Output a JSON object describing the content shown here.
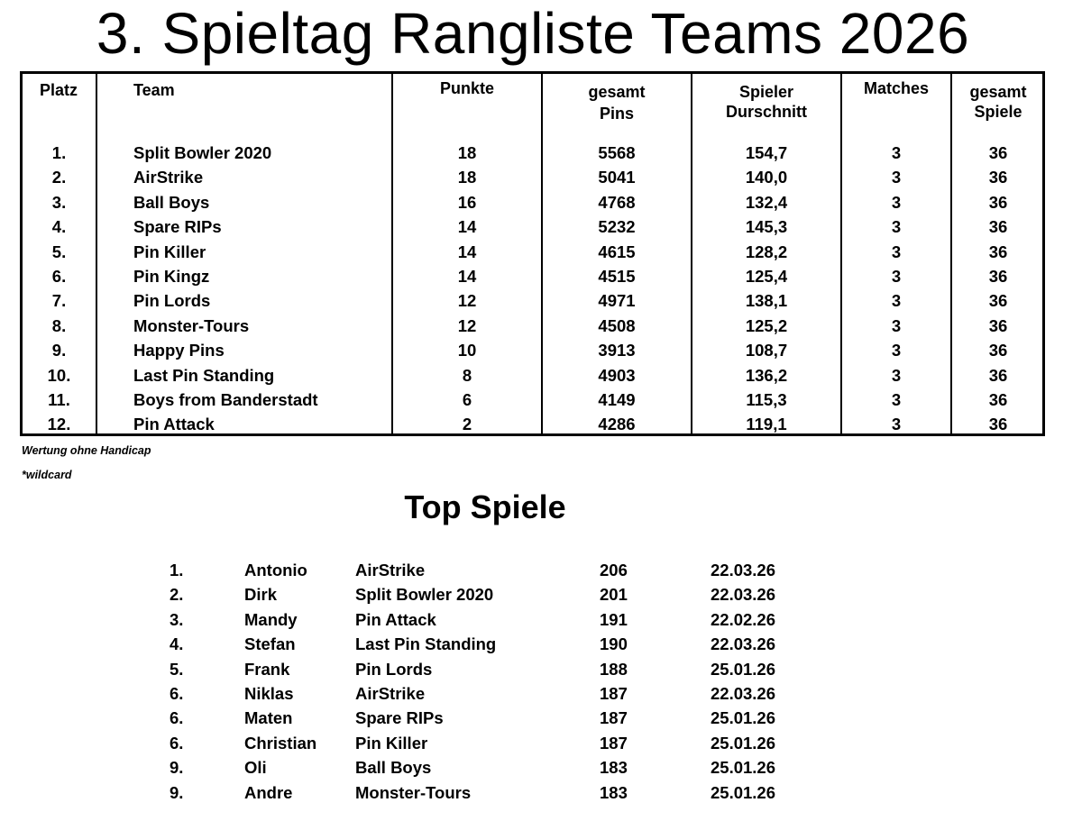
{
  "title": "3. Spieltag Rangliste Teams 2026",
  "ranking": {
    "headers": {
      "platz": "Platz",
      "team": "Team",
      "punkte": "Punkte",
      "pins_1": "gesamt",
      "pins_2": "Pins",
      "avg_1": "Spieler",
      "avg_2": "Durschnitt",
      "matches": "Matches",
      "games_1": "gesamt",
      "games_2": "Spiele"
    },
    "rows": [
      {
        "platz": "1.",
        "team": "Split Bowler 2020",
        "punkte": "18",
        "pins": "5568",
        "avg": "154,7",
        "matches": "3",
        "games": "36"
      },
      {
        "platz": "2.",
        "team": "AirStrike",
        "punkte": "18",
        "pins": "5041",
        "avg": "140,0",
        "matches": "3",
        "games": "36"
      },
      {
        "platz": "3.",
        "team": "Ball Boys",
        "punkte": "16",
        "pins": "4768",
        "avg": "132,4",
        "matches": "3",
        "games": "36"
      },
      {
        "platz": "4.",
        "team": "Spare RIPs",
        "punkte": "14",
        "pins": "5232",
        "avg": "145,3",
        "matches": "3",
        "games": "36"
      },
      {
        "platz": "5.",
        "team": "Pin Killer",
        "punkte": "14",
        "pins": "4615",
        "avg": "128,2",
        "matches": "3",
        "games": "36"
      },
      {
        "platz": "6.",
        "team": "Pin Kingz",
        "punkte": "14",
        "pins": "4515",
        "avg": "125,4",
        "matches": "3",
        "games": "36"
      },
      {
        "platz": "7.",
        "team": "Pin Lords",
        "punkte": "12",
        "pins": "4971",
        "avg": "138,1",
        "matches": "3",
        "games": "36"
      },
      {
        "platz": "8.",
        "team": "Monster-Tours",
        "punkte": "12",
        "pins": "4508",
        "avg": "125,2",
        "matches": "3",
        "games": "36"
      },
      {
        "platz": "9.",
        "team": "Happy Pins",
        "punkte": "10",
        "pins": "3913",
        "avg": "108,7",
        "matches": "3",
        "games": "36"
      },
      {
        "platz": "10.",
        "team": "Last Pin Standing",
        "punkte": "8",
        "pins": "4903",
        "avg": "136,2",
        "matches": "3",
        "games": "36"
      },
      {
        "platz": "11.",
        "team": "Boys from Banderstadt",
        "punkte": "6",
        "pins": "4149",
        "avg": "115,3",
        "matches": "3",
        "games": "36"
      },
      {
        "platz": "12.",
        "team": "Pin Attack",
        "punkte": "2",
        "pins": "4286",
        "avg": "119,1",
        "matches": "3",
        "games": "36"
      }
    ]
  },
  "notes": {
    "handicap": "Wertung ohne Handicap",
    "wildcard": "*wildcard"
  },
  "top_games": {
    "title": "Top Spiele",
    "rows": [
      {
        "rank": "1.",
        "player": "Antonio",
        "team": "AirStrike",
        "score": "206",
        "date": "22.03.26"
      },
      {
        "rank": "2.",
        "player": "Dirk",
        "team": "Split Bowler 2020",
        "score": "201",
        "date": "22.03.26"
      },
      {
        "rank": "3.",
        "player": "Mandy",
        "team": "Pin Attack",
        "score": "191",
        "date": "22.02.26"
      },
      {
        "rank": "4.",
        "player": "Stefan",
        "team": "Last Pin Standing",
        "score": "190",
        "date": "22.03.26"
      },
      {
        "rank": "5.",
        "player": "Frank",
        "team": "Pin Lords",
        "score": "188",
        "date": "25.01.26"
      },
      {
        "rank": "6.",
        "player": "Niklas",
        "team": "AirStrike",
        "score": "187",
        "date": "22.03.26"
      },
      {
        "rank": "6.",
        "player": "Maten",
        "team": "Spare RIPs",
        "score": "187",
        "date": "25.01.26"
      },
      {
        "rank": "6.",
        "player": "Christian",
        "team": "Pin Killer",
        "score": "187",
        "date": "25.01.26"
      },
      {
        "rank": "9.",
        "player": "Oli",
        "team": "Ball Boys",
        "score": "183",
        "date": "25.01.26"
      },
      {
        "rank": "9.",
        "player": "Andre",
        "team": "Monster-Tours",
        "score": "183",
        "date": "25.01.26"
      }
    ]
  }
}
